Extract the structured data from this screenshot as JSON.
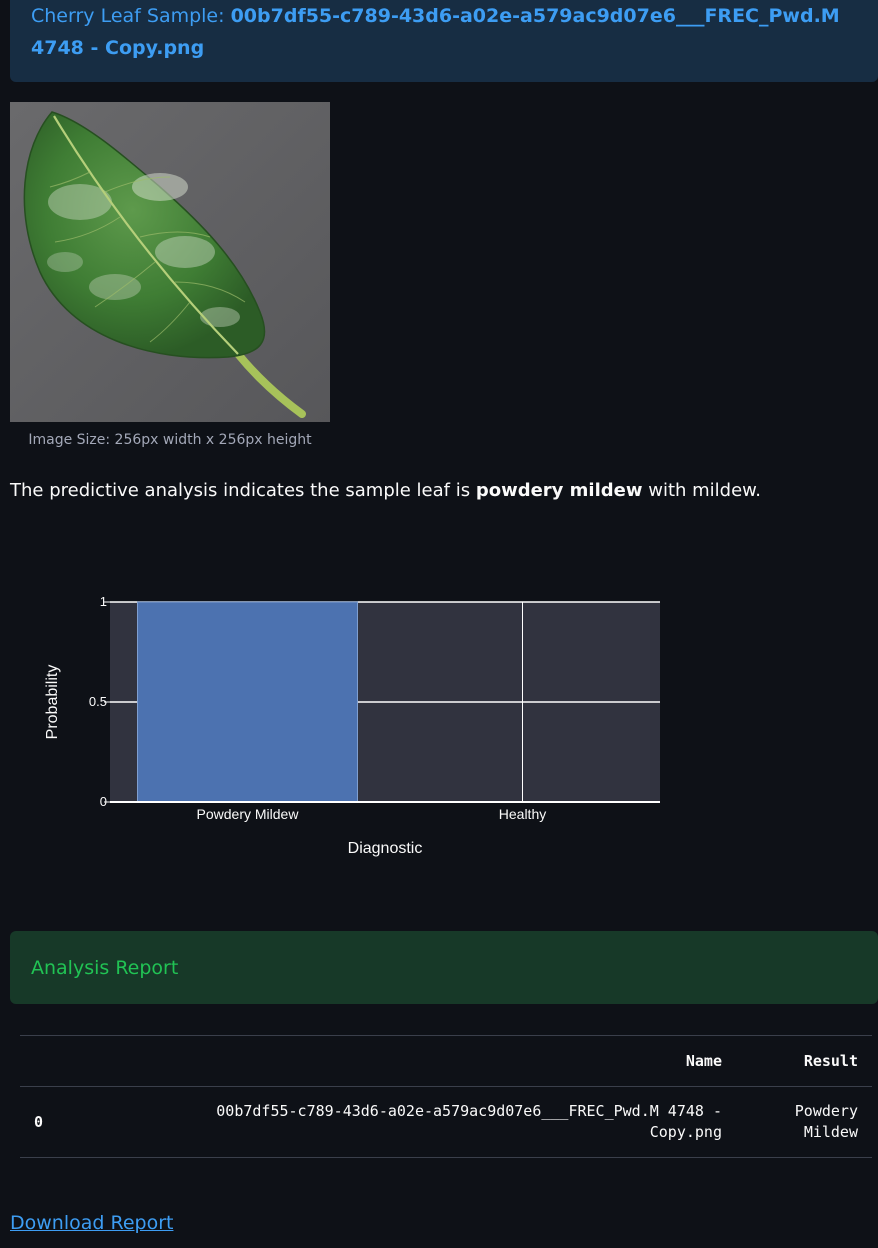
{
  "info_banner": {
    "prefix": "Cherry Leaf Sample: ",
    "filename": "00b7df55-c789-43d6-a02e-a579ac9d07e6___FREC_Pwd.M 4748 - Copy.png"
  },
  "image": {
    "alt": "Cherry leaf sample showing powdery mildew",
    "caption": "Image Size: 256px width x 256px height"
  },
  "prediction": {
    "before": "The predictive analysis indicates the sample leaf is ",
    "result": "powdery mildew",
    "after": " with mildew."
  },
  "chart_data": {
    "type": "bar",
    "categories": [
      "Powdery Mildew",
      "Healthy"
    ],
    "values": [
      1,
      0
    ],
    "xlabel": "Diagnostic",
    "ylabel": "Probability",
    "ylim": [
      0,
      1
    ],
    "yticks": [
      "0",
      "0.5",
      "1"
    ],
    "grid": true,
    "colors": {
      "bar": "#4c72b0",
      "plot_bg": "#31333f",
      "grid": "#ffffff"
    }
  },
  "success_banner": {
    "text": "Analysis Report"
  },
  "table": {
    "headers": [
      "Name",
      "Result"
    ],
    "rows": [
      {
        "index": "0",
        "name": "00b7df55-c789-43d6-a02e-a579ac9d07e6___FREC_Pwd.M 4748 - Copy.png",
        "result": "Powdery Mildew"
      }
    ]
  },
  "download": {
    "label": "Download Report"
  },
  "colors": {
    "background": "#0e1117",
    "info_bg": "#172d43",
    "info_text": "#3d9df3",
    "success_bg": "#173928",
    "success_text": "#21c354"
  }
}
